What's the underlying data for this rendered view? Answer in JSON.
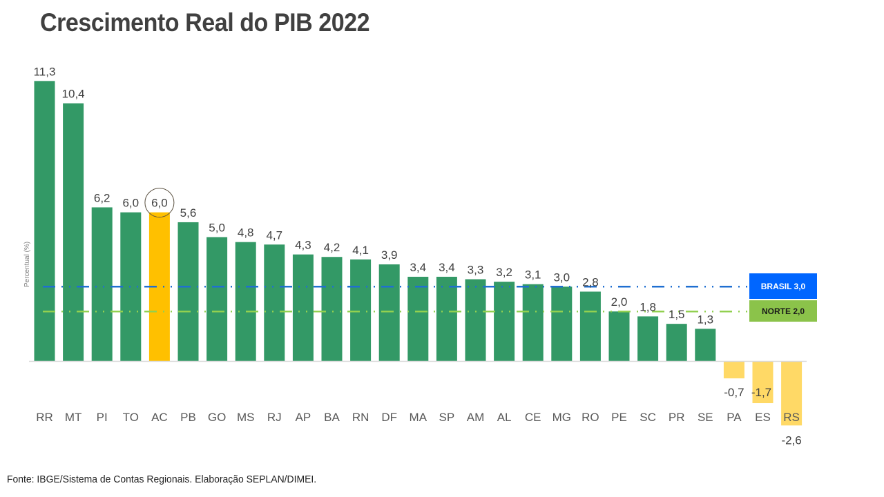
{
  "chart_data": {
    "type": "bar",
    "title": "Crescimento Real do PIB 2022",
    "xlabel": "",
    "ylabel": "Percentual (%)",
    "ylim": [
      -2.6,
      11.3
    ],
    "grid": false,
    "categories": [
      "RR",
      "MT",
      "PI",
      "TO",
      "AC",
      "PB",
      "GO",
      "MS",
      "RJ",
      "AP",
      "BA",
      "RN",
      "DF",
      "MA",
      "SP",
      "AM",
      "AL",
      "CE",
      "MG",
      "RO",
      "PE",
      "SC",
      "PR",
      "SE",
      "PA",
      "ES",
      "RS"
    ],
    "values": [
      11.3,
      10.4,
      6.2,
      6.0,
      6.0,
      5.6,
      5.0,
      4.8,
      4.7,
      4.3,
      4.2,
      4.1,
      3.9,
      3.4,
      3.4,
      3.3,
      3.2,
      3.1,
      3.0,
      2.8,
      2.0,
      1.8,
      1.5,
      1.3,
      -0.7,
      -1.7,
      -2.6
    ],
    "value_labels": [
      "11,3",
      "10,4",
      "6,2",
      "6,0",
      "6,0",
      "5,6",
      "5,0",
      "4,8",
      "4,7",
      "4,3",
      "4,2",
      "4,1",
      "3,9",
      "3,4",
      "3,4",
      "3,3",
      "3,2",
      "3,1",
      "3,0",
      "2,8",
      "2,0",
      "1,8",
      "1,5",
      "1,3",
      "-0,7",
      "-1,7",
      "-2,6"
    ],
    "highlight": {
      "category": "AC",
      "color": "#ffc000",
      "circled": true
    },
    "colors": {
      "positive": "#339966",
      "negative": "#ffd966",
      "highlight": "#ffc000",
      "axis": "#d9d9d9"
    },
    "reference_lines": [
      {
        "name": "BRASIL",
        "value": 3.0,
        "label": "BRASIL  3,0",
        "color": "#1f6fd1",
        "box_color": "#0066ff",
        "text_color": "#ffffff"
      },
      {
        "name": "NORTE",
        "value": 2.0,
        "label": "NORTE 2,0",
        "color": "#92d050",
        "box_color": "#8bc34a",
        "text_color": "#1a1a1a"
      }
    ],
    "legend": "right"
  },
  "footer": "Fonte: IBGE/Sistema de Contas Regionais. Elaboração SEPLAN/DIMEI."
}
